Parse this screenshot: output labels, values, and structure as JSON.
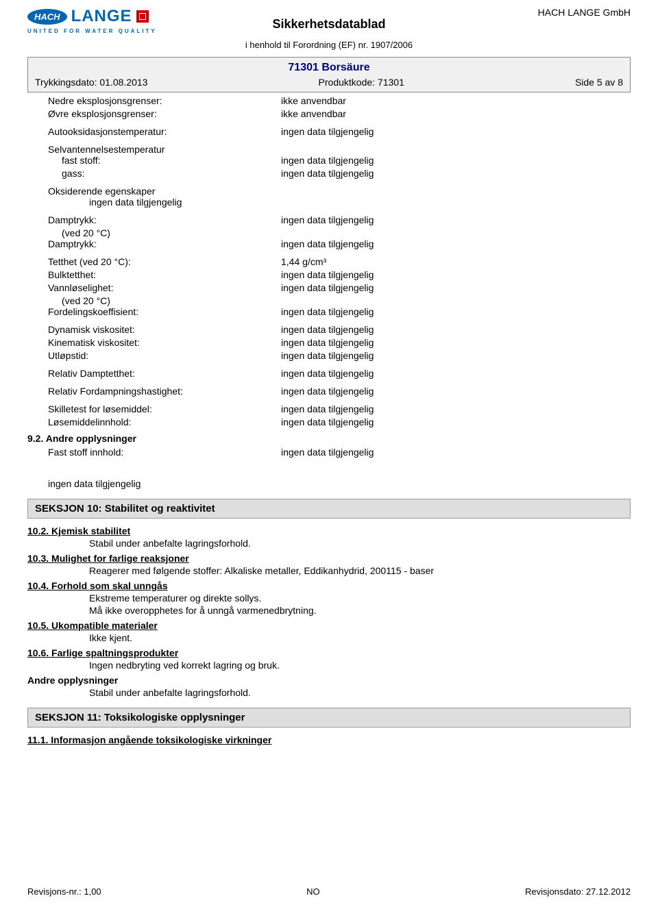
{
  "company_name": "HACH LANGE GmbH",
  "logo": {
    "hach": "HACH",
    "lange": "LANGE",
    "tagline": "UNITED FOR WATER QUALITY"
  },
  "doc_title": "Sikkerhetsdatablad",
  "doc_subtitle": "i henhold til Forordning (EF) nr. 1907/2006",
  "product_name": "71301 Borsäure",
  "meta": {
    "print_date": "Trykkingsdato: 01.08.2013",
    "product_code": "Produktkode: 71301",
    "page": "Side 5 av 8"
  },
  "props": {
    "lower_explosion": {
      "label": "Nedre eksplosjonsgrenser:",
      "value": "ikke anvendbar"
    },
    "upper_explosion": {
      "label": "Øvre eksplosjonsgrenser:",
      "value": "ikke anvendbar"
    },
    "autoox": {
      "label": "Autooksidasjonstemperatur:",
      "value": "ingen data tilgjengelig"
    },
    "selfignition_header": "Selvantennelsestemperatur",
    "solid": {
      "label": "fast stoff:",
      "value": "ingen data tilgjengelig"
    },
    "gas": {
      "label": "gass:",
      "value": "ingen data tilgjengelig"
    },
    "oxidizing_header": "Oksiderende egenskaper",
    "oxidizing_value": "ingen data tilgjengelig",
    "vapor1": {
      "label": "Damptrykk:",
      "sub": "(ved 20 °C)",
      "value": "ingen data tilgjengelig"
    },
    "vapor2": {
      "label": "Damptrykk:",
      "value": "ingen data tilgjengelig"
    },
    "density": {
      "label": "Tetthet (ved 20 °C):",
      "value": "1,44 g/cm³"
    },
    "bulk": {
      "label": "Bulktetthet:",
      "value": "ingen data tilgjengelig"
    },
    "watersol": {
      "label": "Vannløselighet:",
      "sub": "(ved 20 °C)",
      "value": "ingen data tilgjengelig"
    },
    "partition": {
      "label": "Fordelingskoeffisient:",
      "value": "ingen data tilgjengelig"
    },
    "dynvisc": {
      "label": "Dynamisk viskositet:",
      "value": "ingen data tilgjengelig"
    },
    "kinvisc": {
      "label": "Kinematisk viskositet:",
      "value": "ingen data tilgjengelig"
    },
    "flowtime": {
      "label": "Utløpstid:",
      "value": "ingen data tilgjengelig"
    },
    "relvapor": {
      "label": "Relativ Damptetthet:",
      "value": "ingen data tilgjengelig"
    },
    "relevap": {
      "label": "Relativ Fordampningshastighet:",
      "value": "ingen data tilgjengelig"
    },
    "solvtest": {
      "label": "Skilletest for løsemiddel:",
      "value": "ingen data tilgjengelig"
    },
    "solvcontent": {
      "label": "Løsemiddelinnhold:",
      "value": "ingen data tilgjengelig"
    },
    "section92": "9.2. Andre opplysninger",
    "solidcontent": {
      "label": "Fast stoff innhold:",
      "value": "ingen data tilgjengelig"
    },
    "nodata_standalone": "ingen data tilgjengelig"
  },
  "section10": {
    "title": "SEKSJON 10: Stabilitet og reaktivitet",
    "items": [
      {
        "title": "10.2. Kjemisk stabilitet",
        "text": [
          "Stabil under anbefalte lagringsforhold."
        ]
      },
      {
        "title": "10.3. Mulighet for farlige reaksjoner",
        "text": [
          "Reagerer med følgende stoffer: Alkaliske metaller, Eddikanhydrid, 200115 - baser"
        ]
      },
      {
        "title": "10.4. Forhold som skal unngås",
        "text": [
          "Ekstreme temperaturer og direkte sollys.",
          "Må ikke overopphetes for å unngå varmenedbrytning."
        ]
      },
      {
        "title": "10.5. Ukompatible materialer",
        "text": [
          "Ikke kjent."
        ]
      },
      {
        "title": "10.6. Farlige spaltningsprodukter",
        "text": [
          "Ingen nedbryting ved korrekt lagring og bruk."
        ]
      },
      {
        "title": "Andre opplysninger",
        "text": [
          "Stabil under anbefalte lagringsforhold."
        ],
        "no_underline": true
      }
    ]
  },
  "section11": {
    "title": "SEKSJON 11: Toksikologiske opplysninger",
    "item": "11.1. Informasjon angående toksikologiske virkninger"
  },
  "footer": {
    "revision_no": "Revisjons-nr.: 1,00",
    "country": "NO",
    "revision_date": "Revisjonsdato: 27.12.2012"
  },
  "colors": {
    "blue": "#0066b3",
    "navy": "#000080",
    "grey_bg": "#f0f0f0",
    "section_bg": "#dedede"
  }
}
